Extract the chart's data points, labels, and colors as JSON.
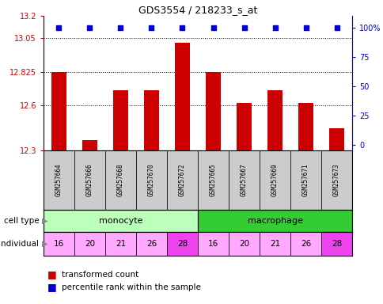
{
  "title": "GDS3554 / 218233_s_at",
  "samples": [
    "GSM257664",
    "GSM257666",
    "GSM257668",
    "GSM257670",
    "GSM257672",
    "GSM257665",
    "GSM257667",
    "GSM257669",
    "GSM257671",
    "GSM257673"
  ],
  "bar_values": [
    12.825,
    12.37,
    12.7,
    12.7,
    13.02,
    12.825,
    12.62,
    12.7,
    12.62,
    12.45
  ],
  "percentile_values": [
    100,
    100,
    100,
    100,
    100,
    100,
    100,
    100,
    100,
    100
  ],
  "ylim_left": [
    12.3,
    13.2
  ],
  "yticks_left": [
    12.3,
    12.6,
    12.825,
    13.05,
    13.2
  ],
  "yticks_right": [
    0,
    25,
    50,
    75,
    100
  ],
  "bar_color": "#cc0000",
  "dot_color": "#0000cc",
  "cell_types": [
    {
      "label": "monocyte",
      "start": 0,
      "end": 5,
      "color": "#bbffbb"
    },
    {
      "label": "macrophage",
      "start": 5,
      "end": 10,
      "color": "#33cc33"
    }
  ],
  "individuals": [
    16,
    20,
    21,
    26,
    28,
    16,
    20,
    21,
    26,
    28
  ],
  "ind_colors": [
    "#ffaaff",
    "#ffaaff",
    "#ffaaff",
    "#ffaaff",
    "#ee44ee",
    "#ffaaff",
    "#ffaaff",
    "#ffaaff",
    "#ffaaff",
    "#ee44ee"
  ],
  "label_box_color": "#cccccc",
  "legend_red_label": "transformed count",
  "legend_blue_label": "percentile rank within the sample",
  "celltype_label": "cell type",
  "individual_label": "individual"
}
